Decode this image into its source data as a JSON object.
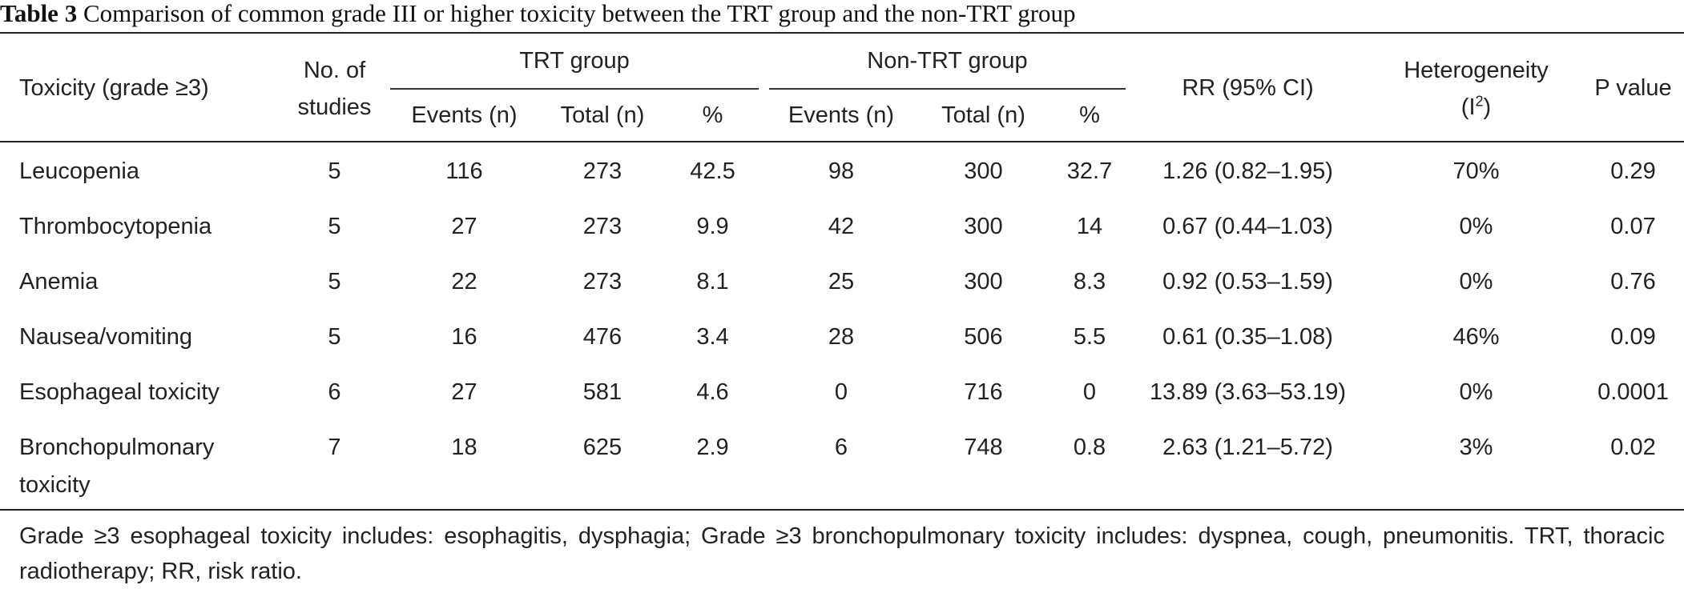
{
  "caption": {
    "label": "Table 3",
    "text": "Comparison of common grade III or higher toxicity between the TRT group and the non-TRT group"
  },
  "headers": {
    "toxicity": "Toxicity (grade ≥3)",
    "studies_line1": "No. of",
    "studies_line2": "studies",
    "trt_group": "TRT group",
    "non_trt_group": "Non-TRT group",
    "events": "Events (n)",
    "total": "Total (n)",
    "percent": "%",
    "rr": "RR (95% CI)",
    "heterogeneity": "Heterogeneity",
    "i2_base": "(I",
    "i2_sup": "2",
    "i2_close": ")",
    "p_value": "P value"
  },
  "rows": [
    {
      "toxicity": "Leucopenia",
      "toxicity_line2": "",
      "studies": "5",
      "trt_events": "116",
      "trt_total": "273",
      "trt_pct": "42.5",
      "non_events": "98",
      "non_total": "300",
      "non_pct": "32.7",
      "rr": "1.26 (0.82–1.95)",
      "het": "70%",
      "p": "0.29"
    },
    {
      "toxicity": "Thrombocytopenia",
      "toxicity_line2": "",
      "studies": "5",
      "trt_events": "27",
      "trt_total": "273",
      "trt_pct": "9.9",
      "non_events": "42",
      "non_total": "300",
      "non_pct": "14",
      "rr": "0.67 (0.44–1.03)",
      "het": "0%",
      "p": "0.07"
    },
    {
      "toxicity": "Anemia",
      "toxicity_line2": "",
      "studies": "5",
      "trt_events": "22",
      "trt_total": "273",
      "trt_pct": "8.1",
      "non_events": "25",
      "non_total": "300",
      "non_pct": "8.3",
      "rr": "0.92 (0.53–1.59)",
      "het": "0%",
      "p": "0.76"
    },
    {
      "toxicity": "Nausea/vomiting",
      "toxicity_line2": "",
      "studies": "5",
      "trt_events": "16",
      "trt_total": "476",
      "trt_pct": "3.4",
      "non_events": "28",
      "non_total": "506",
      "non_pct": "5.5",
      "rr": "0.61 (0.35–1.08)",
      "het": "46%",
      "p": "0.09"
    },
    {
      "toxicity": "Esophageal toxicity",
      "toxicity_line2": "",
      "studies": "6",
      "trt_events": "27",
      "trt_total": "581",
      "trt_pct": "4.6",
      "non_events": "0",
      "non_total": "716",
      "non_pct": "0",
      "rr": "13.89 (3.63–53.19)",
      "het": "0%",
      "p": "0.0001"
    },
    {
      "toxicity": "Bronchopulmonary",
      "toxicity_line2": "toxicity",
      "studies": "7",
      "trt_events": "18",
      "trt_total": "625",
      "trt_pct": "2.9",
      "non_events": "6",
      "non_total": "748",
      "non_pct": "0.8",
      "rr": "2.63 (1.21–5.72)",
      "het": "3%",
      "p": "0.02"
    }
  ],
  "footnote": "Grade ≥3 esophageal toxicity includes: esophagitis, dysphagia; Grade ≥3 bronchopulmonary toxicity includes: dyspnea, cough, pneumonitis. TRT, thoracic radiotherapy; RR, risk ratio."
}
